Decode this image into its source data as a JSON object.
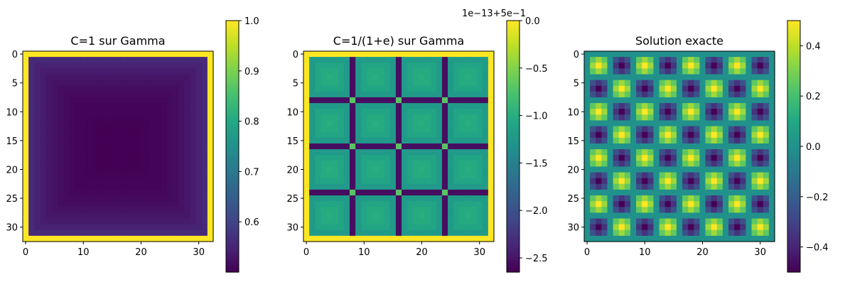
{
  "chart_data": [
    {
      "type": "heatmap",
      "title": "C=1 sur Gamma",
      "grid_size": 33,
      "xticks": [
        "0",
        "10",
        "20",
        "30"
      ],
      "yticks": [
        "0",
        "5",
        "10",
        "15",
        "20",
        "25",
        "30"
      ],
      "pattern": "boundary",
      "boundary_value": 1.0,
      "interior_center": 0.5,
      "interior_edge": 0.56,
      "colorbar": {
        "min": 0.5,
        "max": 1.0,
        "ticks": [
          "0.6",
          "0.7",
          "0.8",
          "0.9",
          "1.0"
        ],
        "tick_values": [
          0.6,
          0.7,
          0.8,
          0.9,
          1.0
        ],
        "offset_text": ""
      },
      "grid": false
    },
    {
      "type": "heatmap",
      "title": "C=1/(1+e) sur Gamma",
      "grid_size": 33,
      "xticks": [
        "0",
        "10",
        "20",
        "30"
      ],
      "yticks": [
        "0",
        "5",
        "10",
        "15",
        "20",
        "25",
        "30"
      ],
      "pattern": "grid_lines",
      "line_period": 8,
      "boundary_value": 0.0,
      "cell_center": -1.0,
      "cell_edge": -1.4,
      "line_value": -2.55,
      "intersection_value": -0.7,
      "colorbar": {
        "min": -2.65,
        "max": 0.0,
        "ticks": [
          "0.0",
          "−0.5",
          "−1.0",
          "−1.5",
          "−2.0",
          "−2.5"
        ],
        "tick_values": [
          0.0,
          -0.5,
          -1.0,
          -1.5,
          -2.0,
          -2.5
        ],
        "offset_text": "1e−13+5e−1"
      },
      "grid": false
    },
    {
      "type": "heatmap",
      "title": "Solution exacte",
      "grid_size": 33,
      "xticks": [
        "0",
        "10",
        "20",
        "30"
      ],
      "yticks": [
        "0",
        "5",
        "10",
        "15",
        "20",
        "25",
        "30"
      ],
      "pattern": "checker_sines",
      "amplitude": 0.5,
      "colorbar": {
        "min": -0.5,
        "max": 0.5,
        "ticks": [
          "0.4",
          "0.2",
          "0.0",
          "−0.2",
          "−0.4"
        ],
        "tick_values": [
          0.4,
          0.2,
          0.0,
          -0.2,
          -0.4
        ],
        "offset_text": ""
      },
      "grid": false
    }
  ]
}
